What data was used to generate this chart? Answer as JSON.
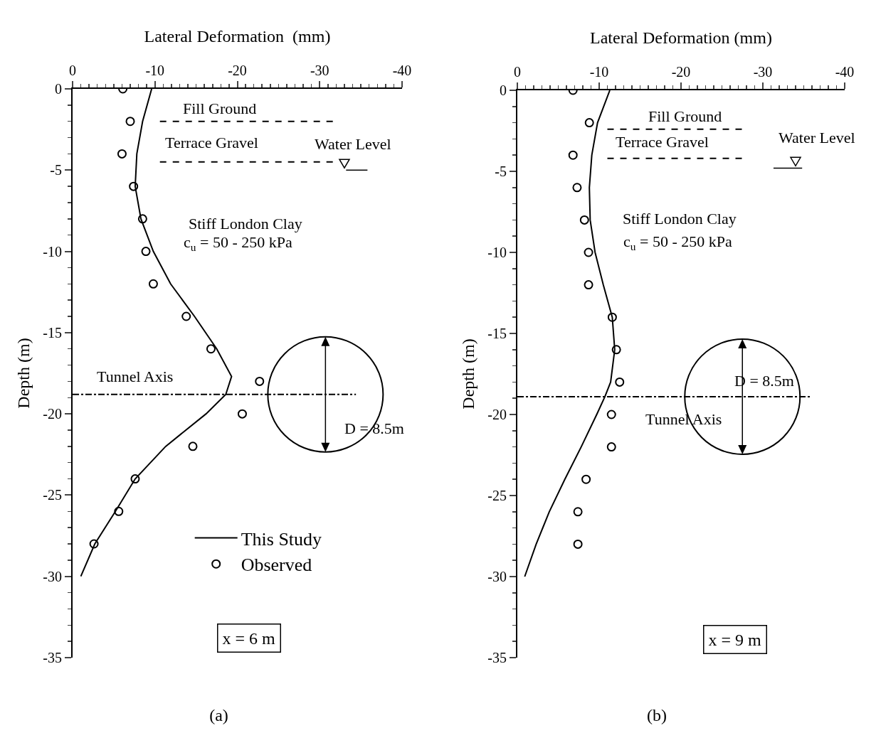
{
  "chart_data": [
    {
      "type": "line",
      "title": "(a)",
      "xlabel": "Lateral Deformation  (mm)",
      "ylabel": "Depth (m)",
      "xlim": [
        0,
        -40
      ],
      "xticks": [
        0,
        -10,
        -20,
        -30,
        -40
      ],
      "ylim": [
        -35,
        0
      ],
      "yticks": [
        0,
        -5,
        -10,
        -15,
        -20,
        -25,
        -30,
        -35
      ],
      "grid": false,
      "legend": "bottom",
      "series": [
        {
          "name": "This Study",
          "color": "#000000",
          "line_style": "solid",
          "x": [
            -9.6,
            -8.5,
            -7.8,
            -7.6,
            -8.3,
            -9.8,
            -11.9,
            -14.8,
            -17.5,
            -19.3,
            -18.6,
            -16.2,
            -11.3,
            -7.6,
            -5.2,
            -2.7,
            -1.0
          ],
          "values": [
            0,
            -2,
            -4,
            -6,
            -8,
            -10,
            -12,
            -14,
            -16,
            -17.7,
            -18.8,
            -20,
            -22,
            -24,
            -26,
            -28,
            -30
          ]
        },
        {
          "name": "Observed",
          "type": "scatter",
          "color": "#000000",
          "marker": "circle",
          "x": [
            -6.1,
            -7.0,
            -6.0,
            -7.4,
            -8.5,
            -8.9,
            -9.8,
            -13.8,
            -16.8,
            -22.7,
            -20.6,
            -14.6,
            -7.6,
            -5.6,
            -2.6
          ],
          "values": [
            0,
            -2,
            -4,
            -6,
            -8,
            -10,
            -12,
            -14,
            -16,
            -18,
            -20,
            -22,
            -24,
            -26,
            -28
          ]
        }
      ],
      "ref_lines": [
        {
          "axis": "y",
          "value": -2,
          "label": "Fill Ground",
          "color": "#000000",
          "line_style": "dashed"
        },
        {
          "axis": "y",
          "value": -4.5,
          "label": "Terrace Gravel",
          "color": "#000000",
          "line_style": "dashed"
        },
        {
          "axis": "y",
          "value": -18.8,
          "label": "Tunnel Axis",
          "color": "#000000",
          "line_style": "dashdot"
        }
      ],
      "annotations": [
        "Stiff London Clay",
        "c$_{u}$ = 50 - 250 kPa",
        "D = 8.5m",
        "Water Level",
        "x = 6 m"
      ]
    },
    {
      "type": "line",
      "title": "(b)",
      "xlabel": "Lateral Deformation (mm)",
      "ylabel": "Depth (m)",
      "xlim": [
        0,
        -40
      ],
      "xticks": [
        0,
        -10,
        -20,
        -30,
        -40
      ],
      "ylim": [
        -35,
        0
      ],
      "yticks": [
        0,
        -5,
        -10,
        -15,
        -20,
        -25,
        -30,
        -35
      ],
      "grid": false,
      "series": [
        {
          "color": "#000000",
          "line_style": "solid",
          "x": [
            -11.3,
            -9.8,
            -9.1,
            -8.8,
            -8.9,
            -9.5,
            -10.5,
            -11.6,
            -11.9,
            -11.4,
            -10.7,
            -9.7,
            -7.8,
            -5.8,
            -3.9,
            -2.3,
            -0.9
          ],
          "values": [
            0,
            -2,
            -4,
            -6,
            -8,
            -10,
            -12,
            -14,
            -16,
            -18,
            -18.9,
            -20,
            -22,
            -24,
            -26,
            -28,
            -30
          ]
        },
        {
          "type": "scatter",
          "color": "#000000",
          "marker": "circle",
          "x": [
            -6.8,
            -8.8,
            -6.8,
            -7.3,
            -8.2,
            -8.7,
            -8.7,
            -11.6,
            -12.1,
            -12.5,
            -11.5,
            -11.5,
            -8.4,
            -7.4,
            -7.4
          ],
          "values": [
            0,
            -2,
            -4,
            -6,
            -8,
            -10,
            -12,
            -14,
            -16,
            -18,
            -20,
            -22,
            -24,
            -26,
            -28
          ]
        }
      ],
      "ref_lines": [
        {
          "axis": "y",
          "value": -2.4,
          "label": "Fill Ground",
          "color": "#000000",
          "line_style": "dashed"
        },
        {
          "axis": "y",
          "value": -4.2,
          "label": "Terrace Gravel",
          "color": "#000000",
          "line_style": "dashed"
        },
        {
          "axis": "y",
          "value": -18.9,
          "label": "Tunnel Axis",
          "color": "#000000",
          "line_style": "dashdot"
        }
      ],
      "annotations": [
        "Stiff London Clay",
        "c$_{u}$ = 50 - 250 kPa",
        "D = 8.5m",
        "Water Level",
        "x = 9 m"
      ]
    }
  ]
}
